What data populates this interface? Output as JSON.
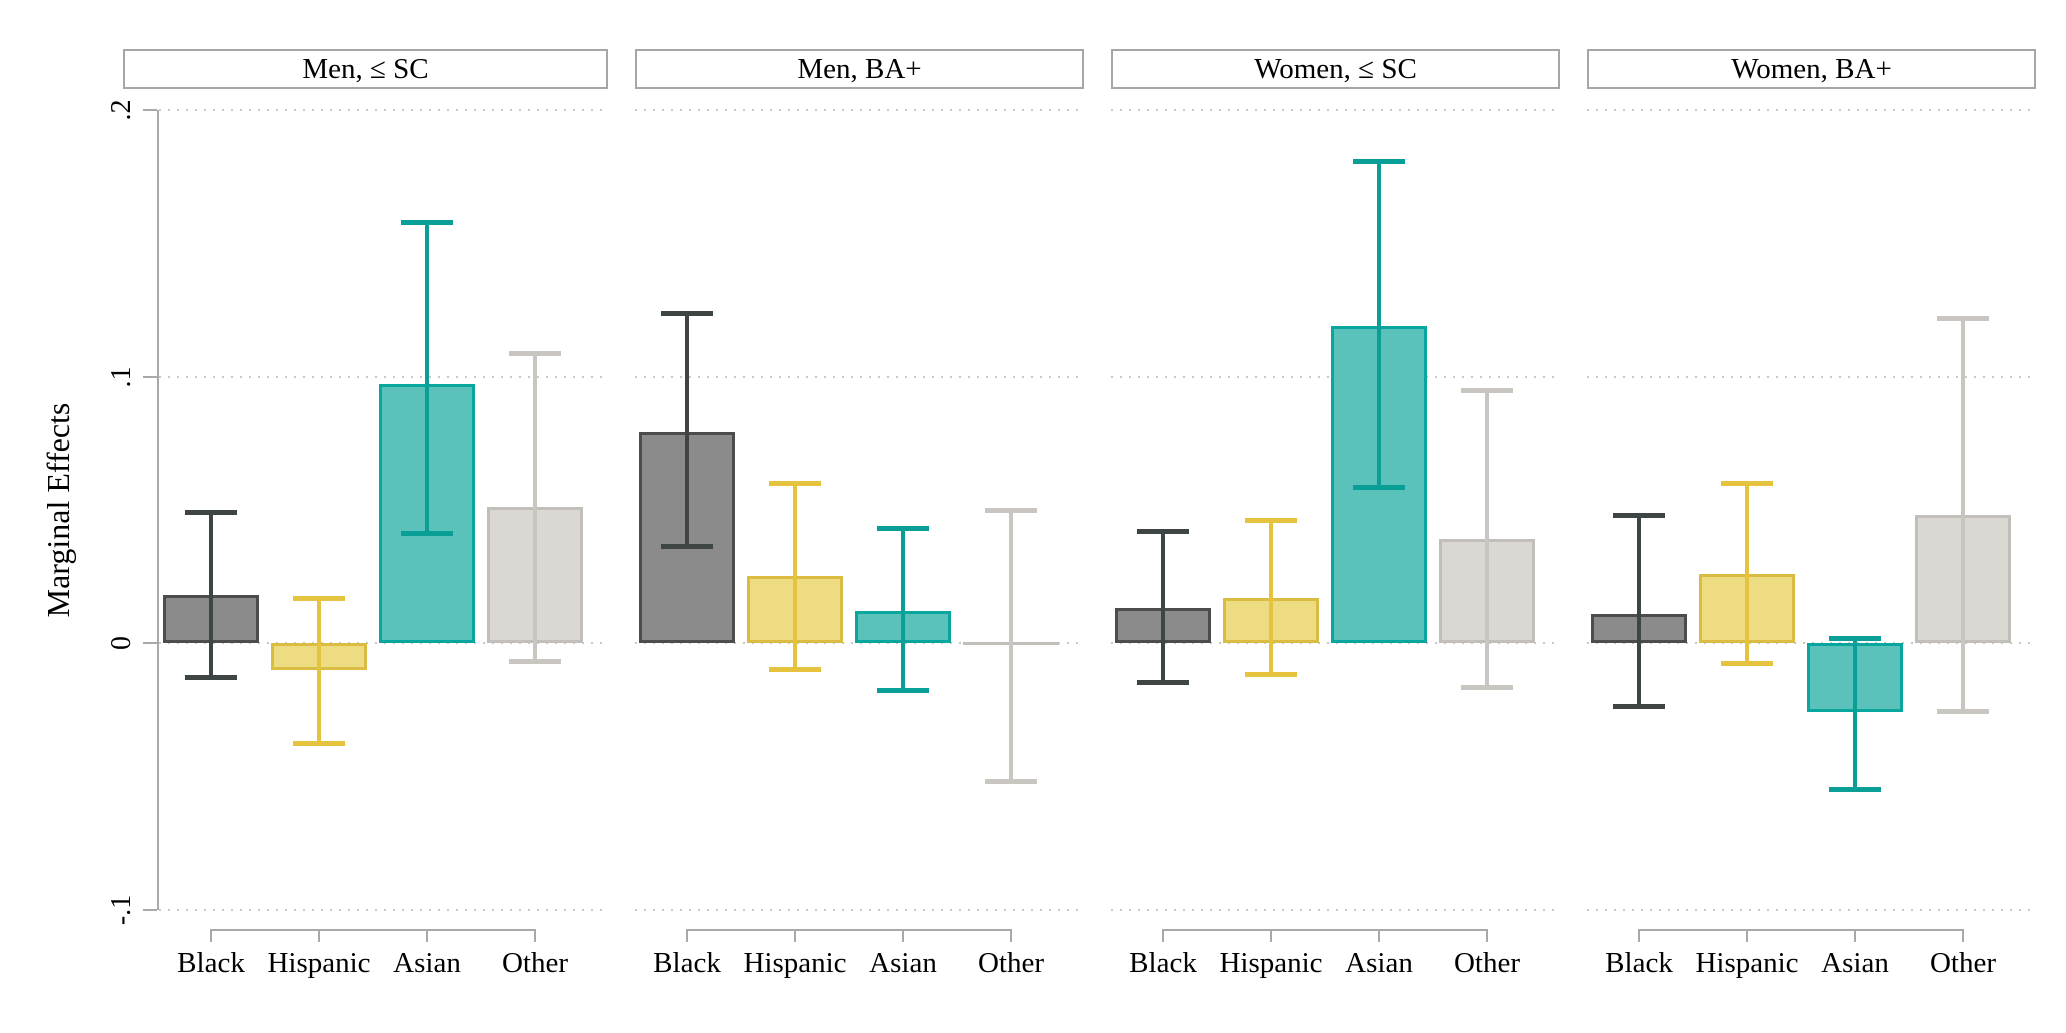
{
  "figure": {
    "ylabel": "Marginal Effects",
    "background": "#ffffff",
    "axis_color": "#a9a9a9",
    "grid_color": "#c7c7c7",
    "header_border_color": "#a6a6a6",
    "text_color": "#000000"
  },
  "axis": {
    "ticks": [
      {
        "label": ".2",
        "value": 0.2
      },
      {
        "label": ".1",
        "value": 0.1
      },
      {
        "label": "0",
        "value": 0.0
      },
      {
        "label": "-.1",
        "value": -0.1
      }
    ]
  },
  "groups": [
    {
      "label": "Black",
      "fill": "#8b8b8b",
      "stroke": "#4c4c4c",
      "whisker": "#3f4545"
    },
    {
      "label": "Hispanic",
      "fill": "#eedc82",
      "stroke": "#d9bc41",
      "whisker": "#e6c33f"
    },
    {
      "label": "Asian",
      "fill": "#5bc2bb",
      "stroke": "#08a69d",
      "whisker": "#0a9f96"
    },
    {
      "label": "Other",
      "fill": "#dbd7d3",
      "stroke": "#c2beba",
      "whisker": "#c9c5c1"
    }
  ],
  "chart_data": {
    "type": "bar",
    "subtype": "bar-with-error-bars, 4 panels (small multiples)",
    "title": "",
    "xlabel": "",
    "ylabel": "Marginal Effects",
    "ylim": [
      -0.1,
      0.2
    ],
    "yticks": [
      0.2,
      0.1,
      0.0,
      -0.1
    ],
    "grid": "horizontal dotted",
    "legend": false,
    "categories": [
      "Black",
      "Hispanic",
      "Asian",
      "Other"
    ],
    "panels": [
      {
        "title": "Men, ≤ SC",
        "values": [
          0.018,
          -0.01,
          0.097,
          0.051
        ],
        "ci_low": [
          -0.013,
          -0.038,
          0.041,
          -0.007
        ],
        "ci_high": [
          0.049,
          0.017,
          0.158,
          0.109
        ]
      },
      {
        "title": "Men, BA+",
        "values": [
          0.079,
          0.025,
          0.012,
          -0.001
        ],
        "ci_low": [
          0.036,
          -0.01,
          -0.018,
          -0.052
        ],
        "ci_high": [
          0.124,
          0.06,
          0.043,
          0.05
        ]
      },
      {
        "title": "Women, ≤ SC",
        "values": [
          0.013,
          0.017,
          0.119,
          0.039
        ],
        "ci_low": [
          -0.015,
          -0.012,
          0.058,
          -0.017
        ],
        "ci_high": [
          0.042,
          0.046,
          0.181,
          0.095
        ]
      },
      {
        "title": "Women, BA+",
        "values": [
          0.011,
          0.026,
          -0.026,
          0.048
        ],
        "ci_low": [
          -0.024,
          -0.008,
          -0.055,
          -0.026
        ],
        "ci_high": [
          0.048,
          0.06,
          0.002,
          0.122
        ]
      }
    ]
  }
}
